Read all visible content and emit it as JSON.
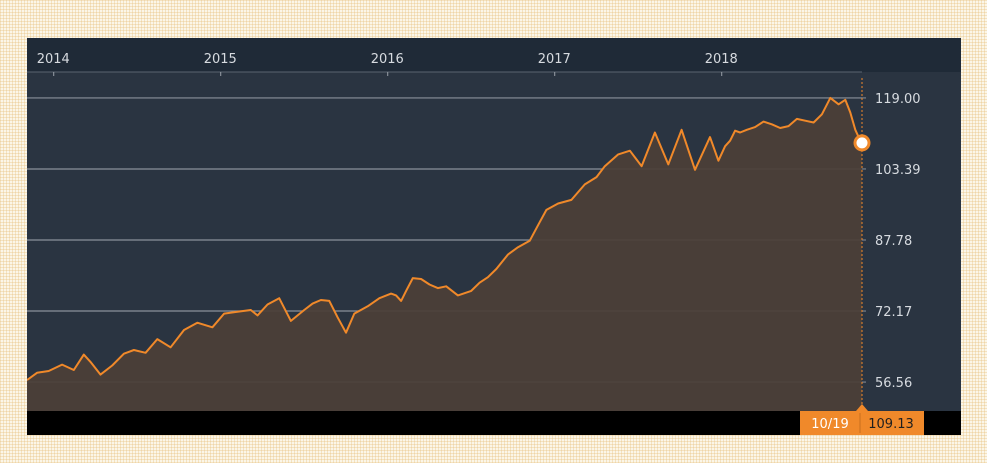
{
  "chart_data": {
    "type": "area",
    "x_tick_labels": [
      "2014",
      "2015",
      "2016",
      "2017",
      "2018"
    ],
    "x_ticks": [
      2014.0,
      2015.0,
      2016.0,
      2017.0,
      2018.0
    ],
    "xlim": [
      2013.84,
      2018.84
    ],
    "y_tick_labels": [
      "119.00",
      "103.39",
      "87.78",
      "72.17",
      "56.56"
    ],
    "y_ticks": [
      119.0,
      103.39,
      87.78,
      72.17,
      56.56
    ],
    "ylim": [
      50.2,
      124.7
    ],
    "grid": "horizontal",
    "series": [
      {
        "x": [
          2013.84,
          2013.9,
          2013.97,
          2014.05,
          2014.12,
          2014.18,
          2014.22,
          2014.28,
          2014.35,
          2014.42,
          2014.48,
          2014.55,
          2014.62,
          2014.7,
          2014.78,
          2014.86,
          2014.95,
          2015.02,
          2015.1,
          2015.18,
          2015.22,
          2015.28,
          2015.35,
          2015.42,
          2015.5,
          2015.55,
          2015.6,
          2015.65,
          2015.7,
          2015.75,
          2015.8,
          2015.88,
          2015.95,
          2016.02,
          2016.05,
          2016.08,
          2016.11,
          2016.15,
          2016.2,
          2016.25,
          2016.3,
          2016.35,
          2016.42,
          2016.5,
          2016.55,
          2016.6,
          2016.65,
          2016.72,
          2016.78,
          2016.85,
          2016.9,
          2016.95,
          2017.02,
          2017.1,
          2017.18,
          2017.25,
          2017.3,
          2017.38,
          2017.45,
          2017.52,
          2017.6,
          2017.68,
          2017.76,
          2017.84,
          2017.93,
          2017.98,
          2018.02,
          2018.05,
          2018.08,
          2018.11,
          2018.15,
          2018.2,
          2018.25,
          2018.3,
          2018.35,
          2018.4,
          2018.45,
          2018.5,
          2018.55,
          2018.6,
          2018.65,
          2018.7,
          2018.74,
          2018.77,
          2018.8,
          2018.83,
          2018.84
        ],
        "values": [
          57.0,
          58.6,
          59.0,
          60.4,
          59.2,
          62.6,
          61.0,
          58.2,
          60.2,
          62.8,
          63.6,
          63.0,
          66.0,
          64.2,
          68.0,
          69.6,
          68.6,
          71.6,
          72.0,
          72.4,
          71.2,
          73.6,
          75.0,
          70.0,
          72.4,
          73.8,
          74.6,
          74.4,
          70.8,
          67.4,
          71.6,
          73.2,
          75.0,
          76.0,
          75.6,
          74.4,
          76.6,
          79.4,
          79.2,
          78.0,
          77.2,
          77.6,
          75.6,
          76.6,
          78.4,
          79.6,
          81.4,
          84.6,
          86.2,
          87.6,
          91.0,
          94.4,
          95.8,
          96.6,
          100.0,
          101.6,
          104.0,
          106.6,
          107.4,
          104.0,
          111.4,
          104.4,
          112.0,
          103.2,
          110.4,
          105.2,
          108.4,
          109.6,
          111.8,
          111.4,
          112.0,
          112.6,
          113.8,
          113.2,
          112.4,
          112.8,
          114.4,
          114.0,
          113.6,
          115.4,
          119.0,
          117.6,
          118.6,
          115.8,
          112.0,
          109.6,
          109.13
        ]
      }
    ],
    "last_point": {
      "date": "10/19",
      "value": "109.13"
    },
    "colors": {
      "line": "#f0892a",
      "area": "#4b3f38",
      "plot_bg": "#2a3441",
      "outer_bg": "#1f2a37",
      "grid": "#8a919b",
      "badge": "#f0892a",
      "marker": "#ffffff"
    }
  }
}
